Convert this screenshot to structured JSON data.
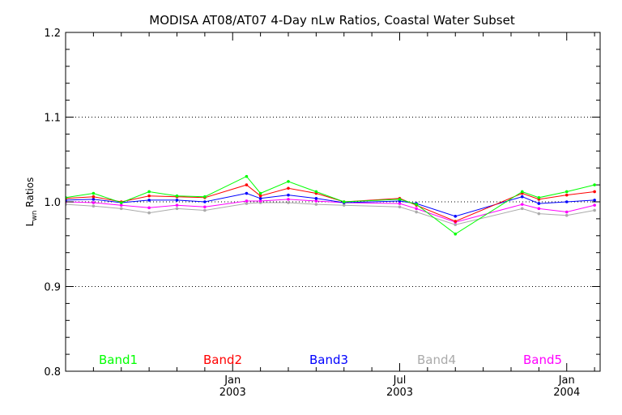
{
  "chart_data": {
    "type": "line",
    "title": "MODISA AT08/AT07 4-Day nLw Ratios, Coastal Water Subset",
    "ylabel_main": "L",
    "ylabel_sub": "wn",
    "ylabel_rest": " Ratios",
    "ylim": [
      0.8,
      1.2
    ],
    "yticks": [
      "0.8",
      "0.9",
      "1.0",
      "1.1",
      "1.2"
    ],
    "ygrid": [
      0.9,
      1.0,
      1.1
    ],
    "grid": "dotted",
    "xticks": [
      {
        "month": "Jan",
        "year": "2003",
        "t": 6
      },
      {
        "month": "Jul",
        "year": "2003",
        "t": 12
      },
      {
        "month": "Jan",
        "year": "2004",
        "t": 18
      }
    ],
    "xlim": [
      0,
      19.2
    ],
    "x": [
      0,
      1,
      2,
      3,
      4,
      5,
      6.5,
      7,
      8,
      9,
      10,
      12,
      12.6,
      14,
      16.4,
      17,
      18,
      19
    ],
    "series": [
      {
        "name": "Band1",
        "color": "#00ff00",
        "values": [
          1.005,
          1.01,
          0.999,
          1.012,
          1.007,
          1.006,
          1.03,
          1.01,
          1.024,
          1.012,
          1.0,
          1.003,
          0.997,
          0.962,
          1.012,
          1.005,
          1.012,
          1.02
        ]
      },
      {
        "name": "Band2",
        "color": "#ff0000",
        "values": [
          1.004,
          1.006,
          1.0,
          1.007,
          1.006,
          1.005,
          1.02,
          1.007,
          1.016,
          1.01,
          1.0,
          1.004,
          0.996,
          0.977,
          1.01,
          1.003,
          1.008,
          1.012
        ]
      },
      {
        "name": "Band3",
        "color": "#0000ff",
        "values": [
          1.002,
          1.003,
          0.999,
          1.002,
          1.002,
          1.0,
          1.01,
          1.004,
          1.008,
          1.004,
          0.999,
          1.001,
          0.998,
          0.983,
          1.006,
          0.998,
          1.0,
          1.002
        ]
      },
      {
        "name": "Band4",
        "color": "#aaaaaa",
        "values": [
          0.997,
          0.995,
          0.992,
          0.987,
          0.992,
          0.99,
          0.998,
          0.999,
          0.999,
          0.997,
          0.996,
          0.994,
          0.988,
          0.973,
          0.992,
          0.986,
          0.984,
          0.99
        ]
      },
      {
        "name": "Band5",
        "color": "#ff00ff",
        "values": [
          1.0,
          0.999,
          0.996,
          0.993,
          0.996,
          0.994,
          1.001,
          1.001,
          1.003,
          1.001,
          0.999,
          0.998,
          0.992,
          0.976,
          0.997,
          0.992,
          0.988,
          0.996
        ]
      }
    ]
  }
}
